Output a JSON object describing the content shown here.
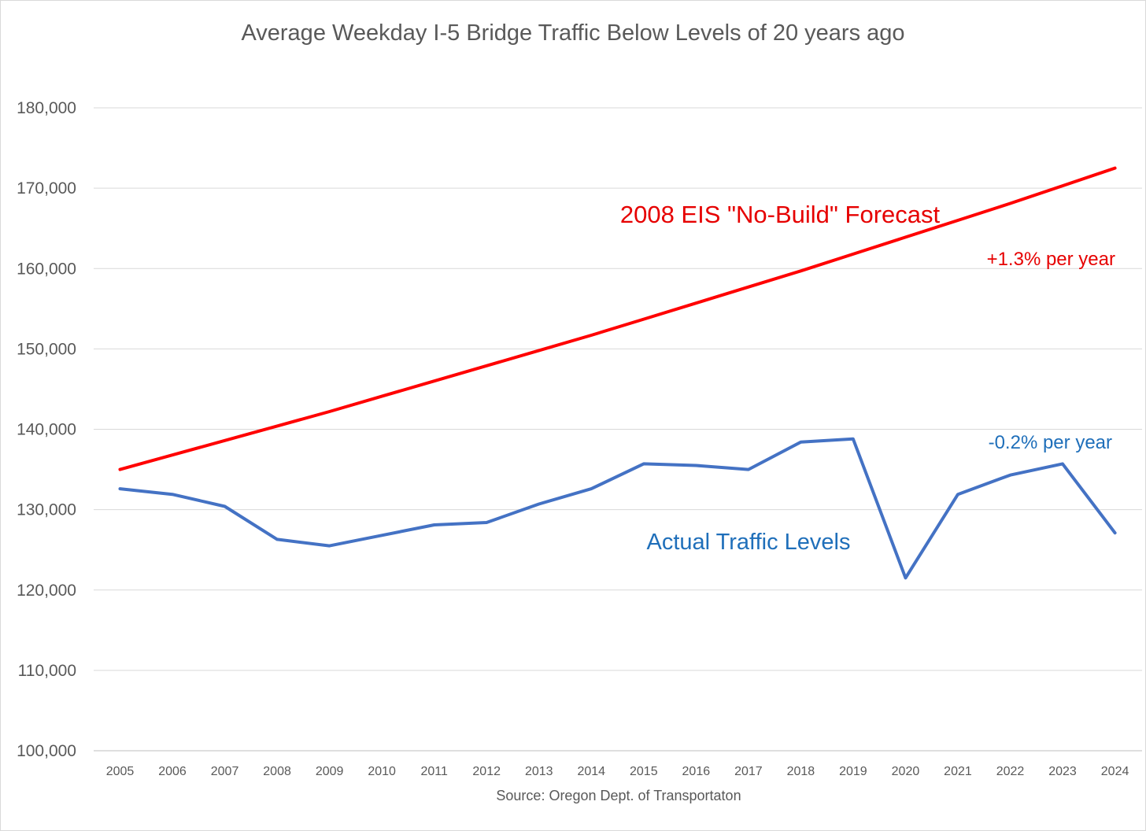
{
  "chart_data": {
    "type": "line",
    "title": "Average Weekday I-5 Bridge Traffic Below Levels of 20 years ago",
    "xlabel": "Source:  Oregon Dept. of Transportaton",
    "ylabel": "",
    "ylim": [
      100000,
      180000
    ],
    "yticks": [
      100000,
      110000,
      120000,
      130000,
      140000,
      150000,
      160000,
      170000,
      180000
    ],
    "ytick_labels": [
      "100,000",
      "110,000",
      "120,000",
      "130,000",
      "140,000",
      "150,000",
      "160,000",
      "170,000",
      "180,000"
    ],
    "grid": true,
    "categories": [
      "2005",
      "2006",
      "2007",
      "2008",
      "2009",
      "2010",
      "2011",
      "2012",
      "2013",
      "2014",
      "2015",
      "2016",
      "2017",
      "2018",
      "2019",
      "2020",
      "2021",
      "2022",
      "2023",
      "2024"
    ],
    "series": [
      {
        "name": "2008 EIS \"No-Build\" Forecast",
        "color": "#ff0000",
        "values": [
          135000,
          136800,
          138600,
          140400,
          142200,
          144100,
          146000,
          147900,
          149800,
          151700,
          153700,
          155700,
          157700,
          159700,
          161800,
          163900,
          166000,
          168100,
          170300,
          172500
        ]
      },
      {
        "name": "Actual Traffic Levels",
        "color": "#4472c4",
        "values": [
          132600,
          131900,
          130400,
          126300,
          125500,
          126800,
          128100,
          128400,
          130700,
          132600,
          135700,
          135500,
          135000,
          138400,
          138800,
          121500,
          131900,
          134300,
          135700,
          127100
        ]
      }
    ],
    "annotations": [
      {
        "id": "forecast_label",
        "text": "2008 EIS \"No-Build\" Forecast",
        "color": "#e60000"
      },
      {
        "id": "forecast_rate",
        "text": "+1.3% per year",
        "color": "#e60000"
      },
      {
        "id": "actual_rate",
        "text": "-0.2% per year",
        "color": "#1f6fba"
      },
      {
        "id": "actual_label",
        "text": "Actual Traffic Levels",
        "color": "#1f6fba"
      }
    ]
  }
}
